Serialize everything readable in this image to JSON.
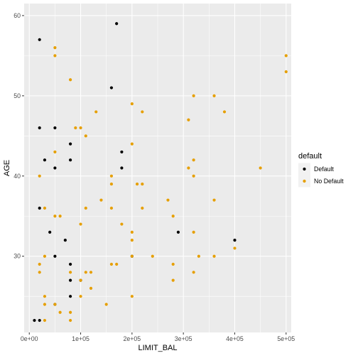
{
  "chart_data": {
    "type": "scatter",
    "title": "",
    "xlabel": "LIMIT_BAL",
    "ylabel": "AGE",
    "xlim": [
      -10000,
      510000
    ],
    "ylim": [
      20.5,
      61.5
    ],
    "x_ticks": [
      {
        "value": 0,
        "label": "0e+00"
      },
      {
        "value": 100000,
        "label": "1e+05"
      },
      {
        "value": 200000,
        "label": "2e+05"
      },
      {
        "value": 300000,
        "label": "3e+05"
      },
      {
        "value": 400000,
        "label": "4e+05"
      },
      {
        "value": 500000,
        "label": "5e+05"
      }
    ],
    "y_ticks": [
      {
        "value": 30,
        "label": "30"
      },
      {
        "value": 40,
        "label": "40"
      },
      {
        "value": 50,
        "label": "50"
      },
      {
        "value": 60,
        "label": "60"
      }
    ],
    "grid": true,
    "legend": {
      "title": "default",
      "position": "right"
    },
    "series": [
      {
        "name": "Default",
        "color": "#000000",
        "points": [
          [
            10000,
            22
          ],
          [
            20000,
            22
          ],
          [
            20000,
            57
          ],
          [
            20000,
            46
          ],
          [
            20000,
            36
          ],
          [
            30000,
            42
          ],
          [
            40000,
            33
          ],
          [
            50000,
            46
          ],
          [
            50000,
            41
          ],
          [
            50000,
            30
          ],
          [
            50000,
            24
          ],
          [
            70000,
            32
          ],
          [
            80000,
            44
          ],
          [
            80000,
            42
          ],
          [
            80000,
            29
          ],
          [
            80000,
            27
          ],
          [
            80000,
            25
          ],
          [
            100000,
            27
          ],
          [
            160000,
            51
          ],
          [
            170000,
            59
          ],
          [
            180000,
            43
          ],
          [
            180000,
            41
          ],
          [
            200000,
            30
          ],
          [
            290000,
            33
          ],
          [
            400000,
            32
          ]
        ]
      },
      {
        "name": "No Default",
        "color": "#E69F00",
        "points": [
          [
            20000,
            40
          ],
          [
            20000,
            29
          ],
          [
            20000,
            28
          ],
          [
            30000,
            36
          ],
          [
            30000,
            30
          ],
          [
            30000,
            25
          ],
          [
            30000,
            24
          ],
          [
            30000,
            22
          ],
          [
            50000,
            56
          ],
          [
            50000,
            55
          ],
          [
            50000,
            43
          ],
          [
            50000,
            35
          ],
          [
            50000,
            24
          ],
          [
            60000,
            35
          ],
          [
            60000,
            23
          ],
          [
            80000,
            52
          ],
          [
            80000,
            28
          ],
          [
            80000,
            23
          ],
          [
            80000,
            22
          ],
          [
            90000,
            46
          ],
          [
            100000,
            46
          ],
          [
            100000,
            34
          ],
          [
            100000,
            27
          ],
          [
            100000,
            25
          ],
          [
            110000,
            45
          ],
          [
            110000,
            36
          ],
          [
            110000,
            28
          ],
          [
            120000,
            28
          ],
          [
            120000,
            26
          ],
          [
            130000,
            48
          ],
          [
            140000,
            37
          ],
          [
            150000,
            24
          ],
          [
            160000,
            40
          ],
          [
            160000,
            39
          ],
          [
            160000,
            36
          ],
          [
            160000,
            29
          ],
          [
            170000,
            29
          ],
          [
            180000,
            34
          ],
          [
            200000,
            49
          ],
          [
            200000,
            44
          ],
          [
            200000,
            33
          ],
          [
            200000,
            32
          ],
          [
            200000,
            30
          ],
          [
            200000,
            25
          ],
          [
            210000,
            39
          ],
          [
            220000,
            48
          ],
          [
            220000,
            39
          ],
          [
            220000,
            36
          ],
          [
            240000,
            30
          ],
          [
            270000,
            37
          ],
          [
            280000,
            35
          ],
          [
            280000,
            29
          ],
          [
            280000,
            27
          ],
          [
            310000,
            47
          ],
          [
            310000,
            41
          ],
          [
            320000,
            50
          ],
          [
            320000,
            42
          ],
          [
            320000,
            40
          ],
          [
            320000,
            33
          ],
          [
            320000,
            28
          ],
          [
            330000,
            30
          ],
          [
            360000,
            50
          ],
          [
            360000,
            37
          ],
          [
            360000,
            30
          ],
          [
            380000,
            48
          ],
          [
            400000,
            31
          ],
          [
            450000,
            41
          ],
          [
            500000,
            55
          ],
          [
            500000,
            53
          ]
        ]
      }
    ]
  }
}
